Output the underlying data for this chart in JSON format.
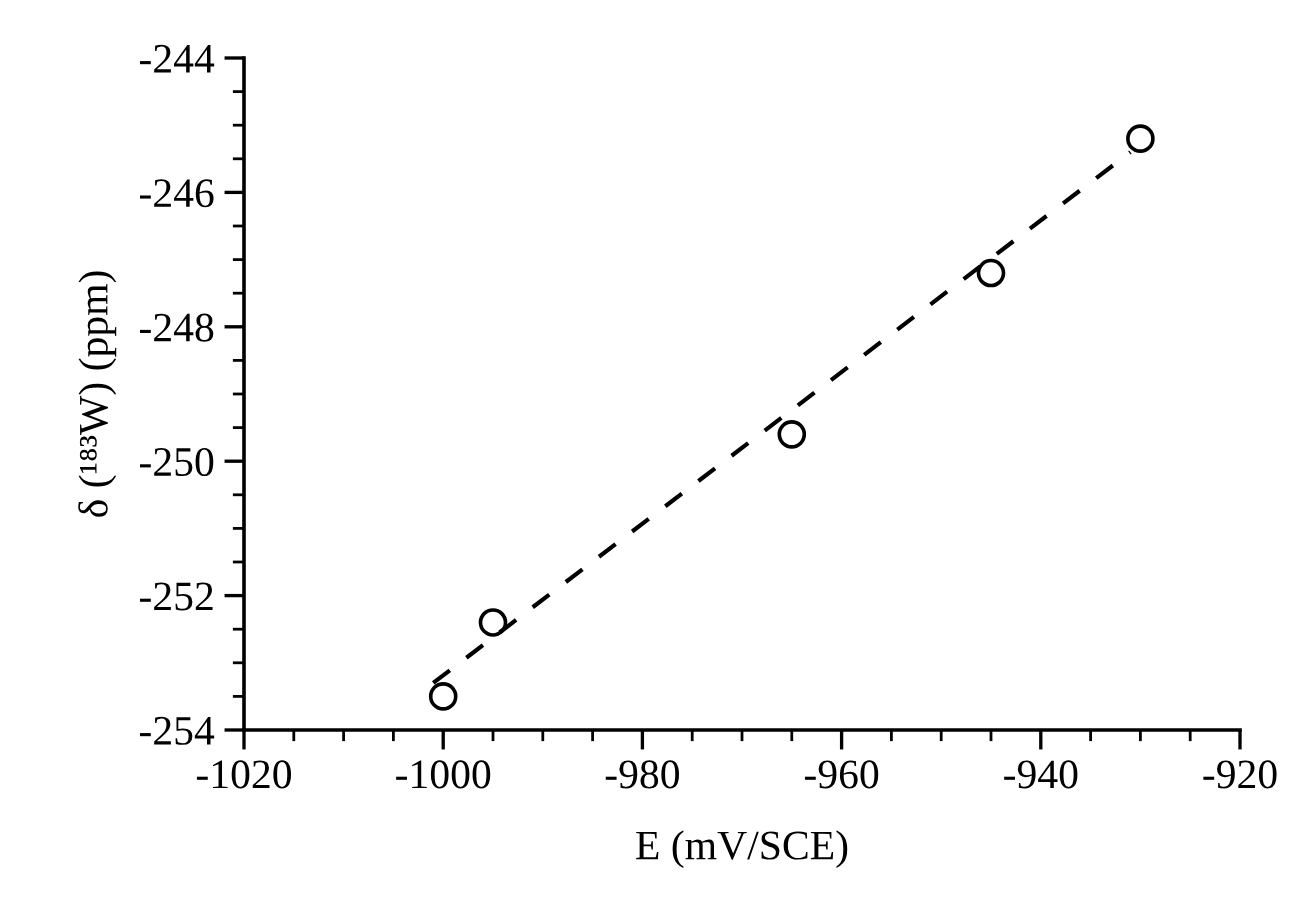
{
  "chart_data": {
    "type": "scatter",
    "xlabel": "E (mV/SCE)",
    "ylabel": "δ (¹⁸³W) (ppm)",
    "xlim": [
      -1020,
      -920
    ],
    "xticks": [
      -1020,
      -1000,
      -980,
      -960,
      -940,
      -920
    ],
    "ylim": [
      -254,
      -244
    ],
    "yticks": [
      -254,
      -252,
      -250,
      -248,
      -246,
      -244
    ],
    "grid": false,
    "legend": false,
    "series": [
      {
        "color": "#000000",
        "marker": "circle",
        "x": [
          -1000,
          -995,
          -965,
          -945,
          -930
        ],
        "values": [
          -253.5,
          -252.4,
          -249.6,
          -247.2,
          -245.2
        ]
      },
      {
        "type": "line",
        "color": "#000000",
        "line_style": "dashed",
        "marker": "none",
        "x": [
          -1001,
          -931
        ],
        "values": [
          -253.3,
          -245.4
        ]
      }
    ]
  }
}
